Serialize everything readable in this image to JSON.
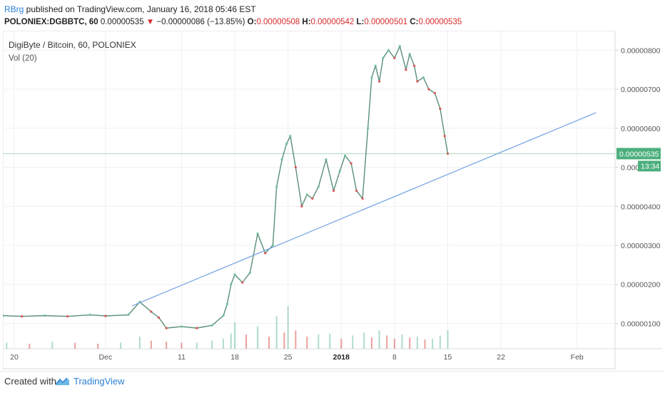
{
  "header": {
    "publisher": "RBrg",
    "published_text": " published on TradingView.com, January 16, 2018 05:46 EST",
    "symbol": "POLONIEX:DGBBTC, 60",
    "last": "0.00000535",
    "change_arrow": "▼",
    "change": "−0.00000086 (−13.85%)",
    "o_label": "O:",
    "o_value": "0.00000508",
    "h_label": "H:",
    "h_value": "0.00000542",
    "l_label": "L:",
    "l_value": "0.00000501",
    "c_label": "C:",
    "c_value": "0.00000535"
  },
  "footer": {
    "created_with": "Created with",
    "brand": "TradingView",
    "logo_icon": "tradingview-cloud-icon"
  },
  "colors": {
    "up": "#6fbf9a",
    "down": "#d9534f",
    "trendline": "#6fa0e6",
    "price_line": "#4caf7d",
    "grid": "#eef0f3",
    "axis_text": "#555555",
    "publisher": "#2a7fd4"
  },
  "chart_data": {
    "type": "line",
    "title": "DigiByte / Bitcoin, 60, POLONIEX",
    "subtitle": "Vol (20)",
    "xlabel": "",
    "ylabel": "",
    "x_tick_labels": [
      "20",
      "Dec",
      "11",
      "18",
      "25",
      "2018",
      "8",
      "15",
      "22",
      "Feb"
    ],
    "x_tick_days": [
      -12,
      0,
      10,
      17,
      24,
      31,
      38,
      45,
      52,
      62
    ],
    "y_tick_values": [
      1e-06,
      2e-06,
      3e-06,
      4e-06,
      5e-06,
      6e-06,
      7e-06,
      8e-06
    ],
    "y_tick_labels": [
      "0.00000100",
      "0.00000200",
      "0.00000300",
      "0.00000400",
      "0.00000500",
      "0.00000600",
      "0.00000700",
      "0.00000800"
    ],
    "ylim": [
      3.5e-07,
      8.5e-06
    ],
    "xlim_days": [
      -13.5,
      67
    ],
    "current_price_label": "0.00000535",
    "current_price": 5.35e-06,
    "countdown_label": "13:34",
    "grid": true,
    "price_series": {
      "name": "DGBBTC",
      "days": [
        -13.5,
        -11,
        -8,
        -5,
        -2,
        0,
        3,
        4.5,
        6,
        7,
        8,
        10,
        12,
        14,
        15.5,
        16,
        16.5,
        17,
        18,
        19,
        20,
        21,
        22,
        22.5,
        23.2,
        23.8,
        24.3,
        25,
        25.8,
        26.5,
        27.2,
        28,
        29,
        30,
        30.8,
        31.5,
        32.3,
        33,
        33.8,
        34.5,
        35,
        35.5,
        36,
        36.5,
        37.2,
        38,
        38.7,
        39.5,
        40,
        40.6,
        41,
        41.8,
        42.5,
        43.3,
        44,
        44.6,
        45
      ],
      "values": [
        1.2e-06,
        1.18e-06,
        1.2e-06,
        1.18e-06,
        1.22e-06,
        1.19e-06,
        1.22e-06,
        1.55e-06,
        1.3e-06,
        1.15e-06,
        8.8e-07,
        9.2e-07,
        8.8e-07,
        9.5e-07,
        1.2e-06,
        1.5e-06,
        2e-06,
        2.25e-06,
        2.05e-06,
        2.3e-06,
        3.3e-06,
        2.8e-06,
        3e-06,
        4.5e-06,
        5.2e-06,
        5.6e-06,
        5.8e-06,
        5e-06,
        4e-06,
        4.3e-06,
        4.2e-06,
        4.5e-06,
        5.2e-06,
        4.4e-06,
        4.9e-06,
        5.3e-06,
        5.1e-06,
        4.4e-06,
        4.2e-06,
        6e-06,
        7.3e-06,
        7.6e-06,
        7.2e-06,
        7.8e-06,
        8e-06,
        7.8e-06,
        8.1e-06,
        7.5e-06,
        7.9e-06,
        7.6e-06,
        7.2e-06,
        7.3e-06,
        7e-06,
        6.9e-06,
        6.5e-06,
        5.8e-06,
        5.35e-06
      ]
    },
    "trendline": {
      "start": {
        "day": 3.5,
        "value": 1.45e-06
      },
      "end": {
        "day": 64.5,
        "value": 6.4e-06
      }
    },
    "volume_series": {
      "name": "Vol (20)",
      "days": [
        -13,
        -10,
        -7,
        -4,
        -1,
        2,
        4.5,
        6,
        8,
        10,
        12,
        14,
        15.5,
        16.5,
        17,
        18.5,
        20,
        21.5,
        22.5,
        23.5,
        24,
        25,
        26.5,
        28,
        29.5,
        31,
        32.5,
        34,
        35,
        36,
        37,
        38,
        39,
        40,
        41,
        42,
        43,
        44,
        45
      ],
      "values": [
        0.6,
        0.5,
        0.7,
        0.6,
        0.5,
        0.6,
        1.2,
        0.8,
        0.7,
        0.6,
        0.6,
        0.8,
        1.0,
        1.5,
        2.6,
        1.4,
        2.2,
        1.2,
        3.2,
        1.6,
        4.2,
        1.8,
        1.2,
        1.4,
        1.5,
        1.0,
        1.3,
        1.6,
        1.1,
        1.8,
        1.3,
        1.0,
        1.4,
        1.1,
        1.2,
        0.9,
        1.0,
        1.3,
        1.8
      ]
    }
  }
}
